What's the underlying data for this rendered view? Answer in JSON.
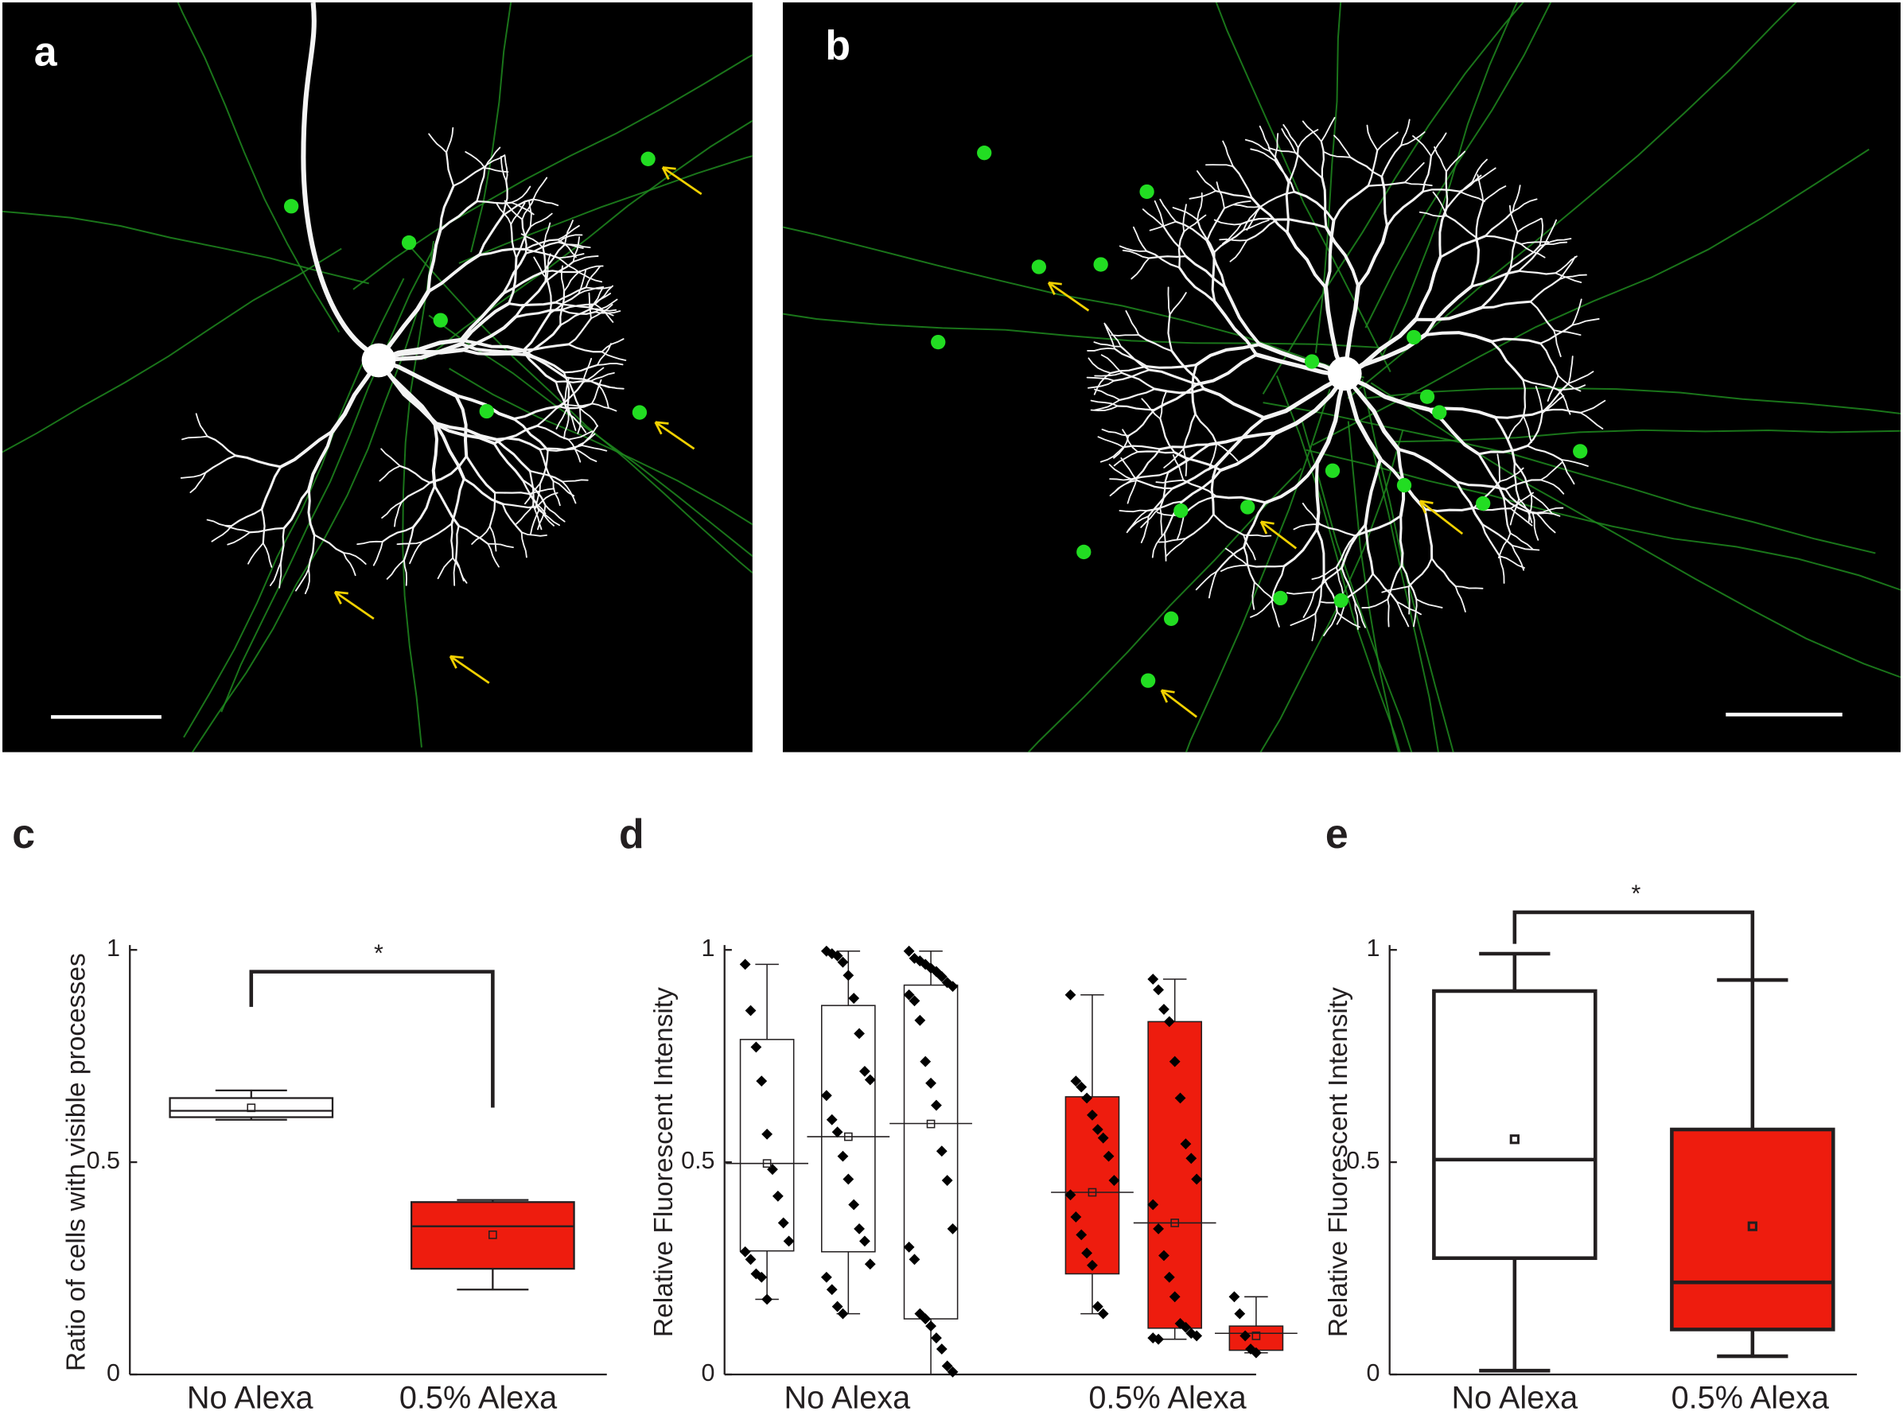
{
  "panels": [
    {
      "label": "a"
    },
    {
      "label": "b"
    }
  ],
  "chart_data": [
    {
      "type": "box",
      "panel_label": "c",
      "ylabel": "Ratio of cells with visible processes",
      "ylim": [
        0,
        1
      ],
      "yticks": [
        0,
        0.5,
        1
      ],
      "annotation": "*",
      "groups": [
        {
          "category": "No Alexa",
          "boxes": [
            {
              "color": "#ffffff",
              "min": 0.6,
              "q1": 0.606,
              "median": 0.621,
              "q3": 0.651,
              "max": 0.669,
              "mean": 0.628
            }
          ]
        },
        {
          "category": "0.5% Alexa",
          "boxes": [
            {
              "color": "#ee1c0e",
              "min": 0.2,
              "q1": 0.249,
              "median": 0.349,
              "q3": 0.406,
              "max": 0.411,
              "mean": 0.329
            }
          ]
        }
      ]
    },
    {
      "type": "box",
      "panel_label": "d",
      "ylabel": "Relative Fluorescent Intensity",
      "ylim": [
        0,
        1
      ],
      "yticks": [
        0,
        0.5,
        1
      ],
      "groups": [
        {
          "category": "No Alexa",
          "boxes": [
            {
              "color": "#ffffff",
              "min": 0.177,
              "q1": 0.291,
              "median": 0.497,
              "q3": 0.789,
              "max": 0.966,
              "mean": 0.497,
              "points": [
                0.966,
                0.857,
                0.771,
                0.691,
                0.566,
                0.483,
                0.42,
                0.357,
                0.314,
                0.289,
                0.271,
                0.237,
                0.229,
                0.177
              ]
            },
            {
              "color": "#ffffff",
              "min": 0.143,
              "q1": 0.289,
              "median": 0.56,
              "q3": 0.869,
              "max": 0.997,
              "mean": 0.56,
              "points": [
                0.997,
                0.991,
                0.986,
                0.971,
                0.94,
                0.886,
                0.803,
                0.714,
                0.694,
                0.657,
                0.6,
                0.571,
                0.514,
                0.46,
                0.4,
                0.343,
                0.314,
                0.26,
                0.229,
                0.2,
                0.16,
                0.143
              ]
            },
            {
              "color": "#ffffff",
              "min": 0,
              "q1": 0.131,
              "median": 0.591,
              "q3": 0.917,
              "max": 0.997,
              "mean": 0.59,
              "points": [
                0.997,
                0.98,
                0.974,
                0.966,
                0.957,
                0.949,
                0.937,
                0.923,
                0.914,
                0.894,
                0.88,
                0.834,
                0.737,
                0.686,
                0.634,
                0.526,
                0.457,
                0.343,
                0.3,
                0.271,
                0.143,
                0.131,
                0.114,
                0.086,
                0.06,
                0.02,
                0.006
              ]
            }
          ]
        },
        {
          "category": "0.5% Alexa",
          "boxes": [
            {
              "color": "#ee1c0e",
              "min": 0.143,
              "q1": 0.237,
              "median": 0.429,
              "q3": 0.654,
              "max": 0.894,
              "mean": 0.429,
              "points": [
                0.894,
                0.691,
                0.677,
                0.651,
                0.611,
                0.577,
                0.557,
                0.514,
                0.457,
                0.423,
                0.371,
                0.329,
                0.286,
                0.257,
                0.16,
                0.143
              ]
            },
            {
              "color": "#ee1c0e",
              "min": 0.083,
              "q1": 0.109,
              "median": 0.357,
              "q3": 0.831,
              "max": 0.931,
              "mean": 0.357,
              "points": [
                0.931,
                0.906,
                0.86,
                0.831,
                0.737,
                0.651,
                0.543,
                0.509,
                0.46,
                0.4,
                0.343,
                0.28,
                0.229,
                0.183,
                0.12,
                0.111,
                0.097,
                0.091,
                0.086,
                0.083
              ]
            },
            {
              "color": "#ee1c0e",
              "min": 0.051,
              "q1": 0.057,
              "median": 0.097,
              "q3": 0.114,
              "max": 0.183,
              "mean": 0.091,
              "points": [
                0.183,
                0.143,
                0.091,
                0.06,
                0.051
              ]
            }
          ]
        }
      ]
    },
    {
      "type": "box",
      "panel_label": "e",
      "ylabel": "Relative Fluorescent Intensity",
      "ylim": [
        0,
        1
      ],
      "yticks": [
        0,
        0.5,
        1
      ],
      "annotation": "*",
      "groups": [
        {
          "category": "No Alexa",
          "boxes": [
            {
              "color": "#ffffff",
              "min": 0.009,
              "q1": 0.274,
              "median": 0.506,
              "q3": 0.903,
              "max": 0.991,
              "mean": 0.554
            }
          ]
        },
        {
          "category": "0.5% Alexa",
          "boxes": [
            {
              "color": "#ee1c0e",
              "min": 0.043,
              "q1": 0.106,
              "median": 0.217,
              "q3": 0.577,
              "max": 0.929,
              "mean": 0.349
            }
          ]
        }
      ]
    }
  ]
}
